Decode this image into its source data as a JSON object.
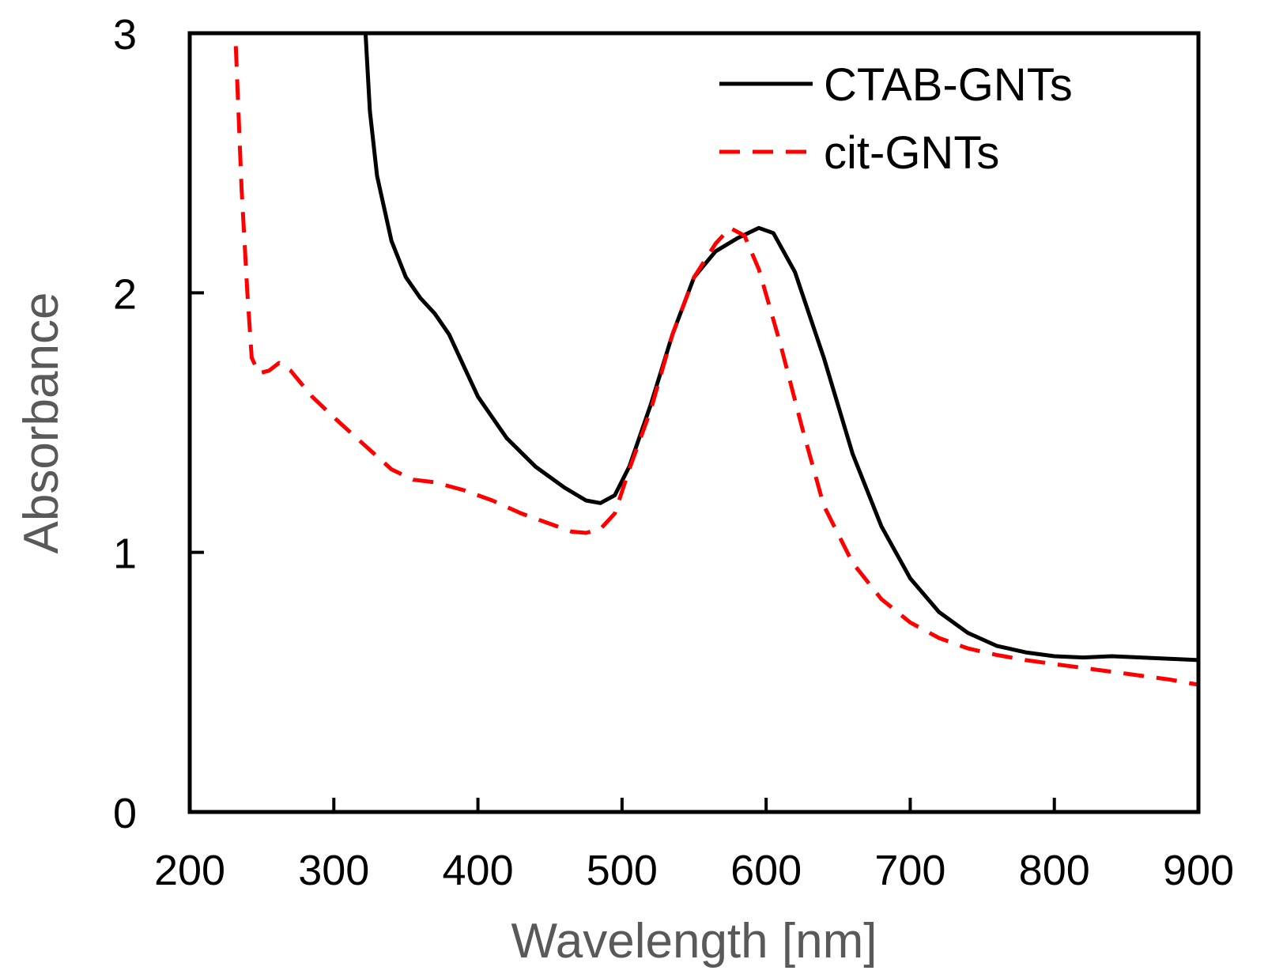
{
  "chart_data": {
    "type": "line",
    "title": "",
    "xlabel": "Wavelength [nm]",
    "ylabel": "Absorbance",
    "xlim": [
      200,
      900
    ],
    "ylim": [
      0,
      3
    ],
    "x_ticks": [
      "200",
      "300",
      "400",
      "500",
      "600",
      "700",
      "800",
      "900"
    ],
    "y_ticks": [
      "0",
      "1",
      "2",
      "3"
    ],
    "grid": false,
    "legend_position": "top-right",
    "series": [
      {
        "name": "CTAB-GNTs",
        "color": "#000000",
        "style": "solid",
        "points": [
          [
            322,
            3.0
          ],
          [
            325,
            2.7
          ],
          [
            330,
            2.45
          ],
          [
            340,
            2.2
          ],
          [
            350,
            2.06
          ],
          [
            360,
            1.98
          ],
          [
            370,
            1.92
          ],
          [
            380,
            1.84
          ],
          [
            390,
            1.72
          ],
          [
            400,
            1.6
          ],
          [
            420,
            1.44
          ],
          [
            440,
            1.33
          ],
          [
            460,
            1.25
          ],
          [
            475,
            1.2
          ],
          [
            485,
            1.19
          ],
          [
            495,
            1.22
          ],
          [
            505,
            1.33
          ],
          [
            520,
            1.57
          ],
          [
            535,
            1.84
          ],
          [
            550,
            2.06
          ],
          [
            565,
            2.16
          ],
          [
            580,
            2.21
          ],
          [
            595,
            2.25
          ],
          [
            605,
            2.23
          ],
          [
            620,
            2.08
          ],
          [
            640,
            1.75
          ],
          [
            660,
            1.38
          ],
          [
            680,
            1.1
          ],
          [
            700,
            0.9
          ],
          [
            720,
            0.77
          ],
          [
            740,
            0.69
          ],
          [
            760,
            0.64
          ],
          [
            780,
            0.615
          ],
          [
            800,
            0.6
          ],
          [
            820,
            0.595
          ],
          [
            840,
            0.6
          ],
          [
            860,
            0.595
          ],
          [
            880,
            0.59
          ],
          [
            900,
            0.585
          ]
        ]
      },
      {
        "name": "cit-GNTs",
        "color": "#ff0000",
        "style": "dashed",
        "points": [
          [
            232,
            2.95
          ],
          [
            236,
            2.4
          ],
          [
            240,
            2.0
          ],
          [
            243,
            1.75
          ],
          [
            248,
            1.69
          ],
          [
            255,
            1.7
          ],
          [
            262,
            1.73
          ],
          [
            270,
            1.7
          ],
          [
            285,
            1.6
          ],
          [
            300,
            1.52
          ],
          [
            320,
            1.42
          ],
          [
            340,
            1.32
          ],
          [
            355,
            1.28
          ],
          [
            370,
            1.27
          ],
          [
            390,
            1.24
          ],
          [
            410,
            1.2
          ],
          [
            430,
            1.15
          ],
          [
            450,
            1.11
          ],
          [
            465,
            1.08
          ],
          [
            475,
            1.075
          ],
          [
            485,
            1.09
          ],
          [
            495,
            1.15
          ],
          [
            505,
            1.32
          ],
          [
            520,
            1.55
          ],
          [
            535,
            1.84
          ],
          [
            550,
            2.06
          ],
          [
            565,
            2.19
          ],
          [
            575,
            2.25
          ],
          [
            585,
            2.22
          ],
          [
            595,
            2.09
          ],
          [
            610,
            1.8
          ],
          [
            625,
            1.48
          ],
          [
            640,
            1.18
          ],
          [
            660,
            0.96
          ],
          [
            680,
            0.82
          ],
          [
            700,
            0.73
          ],
          [
            720,
            0.67
          ],
          [
            740,
            0.63
          ],
          [
            760,
            0.605
          ],
          [
            780,
            0.585
          ],
          [
            800,
            0.57
          ],
          [
            820,
            0.555
          ],
          [
            840,
            0.54
          ],
          [
            860,
            0.525
          ],
          [
            880,
            0.51
          ],
          [
            900,
            0.49
          ]
        ]
      }
    ]
  }
}
